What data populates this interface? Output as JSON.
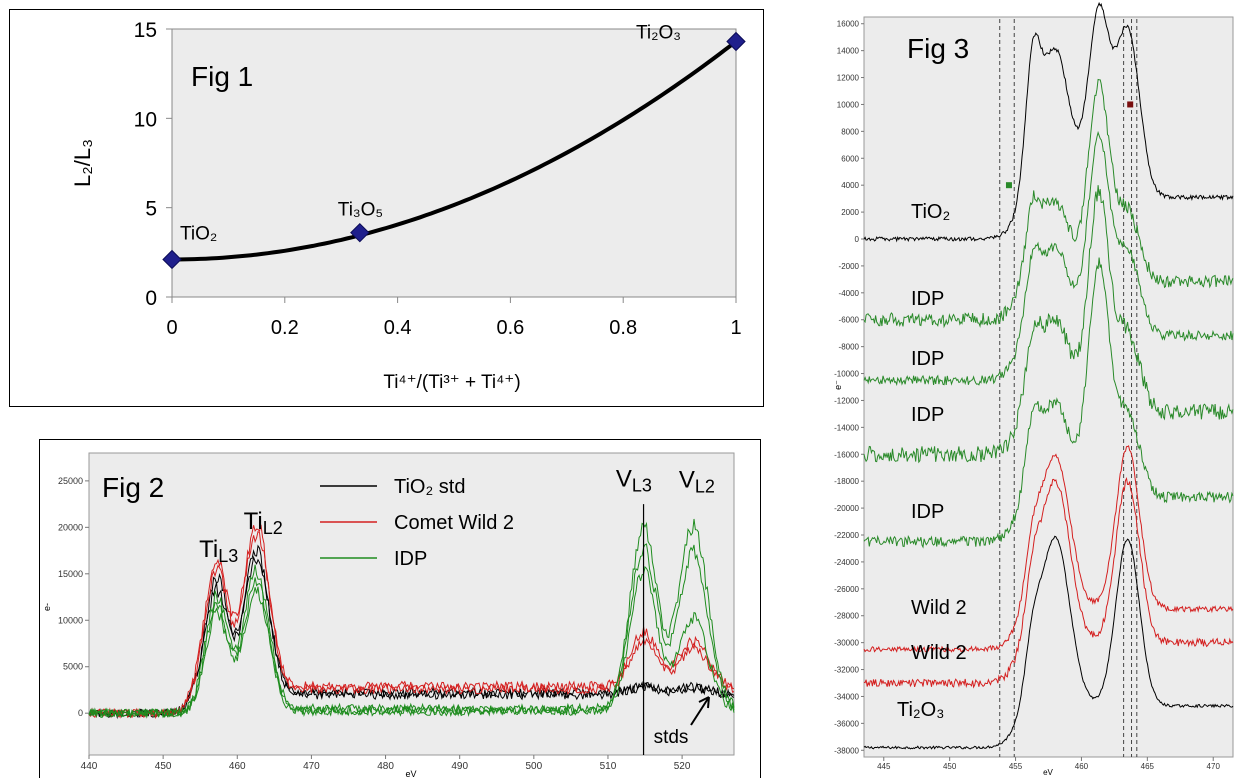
{
  "figures": {
    "fig1": {
      "label": "Fig 1"
    },
    "fig2": {
      "label": "Fig 2",
      "stds_label": "stds"
    },
    "fig3": {
      "label": "Fig 3"
    }
  },
  "colors": {
    "black": "#000000",
    "red": "#d42020",
    "green": "#1e8c1e",
    "marker": "#1f1f8c",
    "plot_bg": "#ececec"
  },
  "chart_data": [
    {
      "type": "line",
      "id": "fig1",
      "xlabel": "Ti⁴⁺/(Ti³⁺ + Ti⁴⁺)",
      "ylabel": "L₂/L₃",
      "xlim": [
        0,
        1
      ],
      "ylim": [
        0,
        15
      ],
      "x_ticks": [
        "0",
        "0.2",
        "0.4",
        "0.6",
        "0.8",
        "1"
      ],
      "y_ticks": [
        "0",
        "5",
        "10",
        "15"
      ],
      "points": [
        {
          "x": 0,
          "y": 2.1,
          "label": "TiO₂"
        },
        {
          "x": 0.333,
          "y": 3.6,
          "label": "Ti₃O₅"
        },
        {
          "x": 1,
          "y": 14.3,
          "label": "Ti₂O₃"
        }
      ],
      "fit": {
        "type": "quadratic",
        "a": 12.2,
        "b": 0,
        "c": 2.1
      },
      "grid": false
    },
    {
      "type": "line",
      "id": "fig2",
      "xlabel": "eV",
      "ylabel": "e-",
      "xlim": [
        440,
        527
      ],
      "ylim": [
        -4500,
        28000
      ],
      "x_ticks": [
        440,
        450,
        460,
        470,
        480,
        490,
        500,
        510,
        520
      ],
      "y_ticks": [
        0,
        5000,
        10000,
        15000,
        20000,
        25000
      ],
      "vline_x": 514.8,
      "legend": {
        "placement": "top",
        "entries": [
          {
            "name": "TiO₂ std",
            "color": "#000000"
          },
          {
            "name": "Comet Wild 2",
            "color": "#d42020"
          },
          {
            "name": "IDP",
            "color": "#1e8c1e"
          }
        ]
      },
      "annotations": [
        {
          "base": "Ti",
          "sub": "L3",
          "x": 457.5,
          "y": 16800
        },
        {
          "base": "Ti",
          "sub": "L2",
          "x": 463.5,
          "y": 19800
        },
        {
          "base": "V",
          "sub": "L3",
          "x": 513.5,
          "y": 24400
        },
        {
          "base": "V",
          "sub": "L2",
          "x": 522,
          "y": 24300
        }
      ],
      "series": [
        {
          "color": "#000000",
          "ti3": 11000,
          "ti2": 14500,
          "plateau": 2200,
          "v3": 600,
          "v2": 500
        },
        {
          "color": "#000000",
          "ti3": 12500,
          "ti2": 15500,
          "plateau": 2000,
          "v3": 900,
          "v2": 800
        },
        {
          "color": "#d42020",
          "ti3": 13500,
          "ti2": 17500,
          "plateau": 2900,
          "v3": 5800,
          "v2": 4700
        },
        {
          "color": "#d42020",
          "ti3": 12800,
          "ti2": 16800,
          "plateau": 2600,
          "v3": 5000,
          "v2": 4300
        },
        {
          "color": "#1e8c1e",
          "ti3": 12000,
          "ti2": 14800,
          "plateau": 500,
          "v3": 19500,
          "v2": 19500
        },
        {
          "color": "#1e8c1e",
          "ti3": 11200,
          "ti2": 13800,
          "plateau": 300,
          "v3": 17500,
          "v2": 17000
        },
        {
          "color": "#1e8c1e",
          "ti3": 10500,
          "ti2": 13000,
          "plateau": 200,
          "v3": 15000,
          "v2": 10000
        }
      ]
    },
    {
      "type": "line",
      "id": "fig3",
      "xlabel": "eV",
      "ylabel": "e⁻",
      "xlim": [
        443.5,
        471.5
      ],
      "ylim": [
        -38500,
        16500
      ],
      "x_ticks": [
        445,
        450,
        455,
        460,
        465,
        470
      ],
      "y_ticks": [
        16000,
        14000,
        12000,
        10000,
        8000,
        6000,
        4000,
        2000,
        0,
        -2000,
        -4000,
        -6000,
        -8000,
        -10000,
        -12000,
        -14000,
        -16000,
        -18000,
        -20000,
        -22000,
        -24000,
        -26000,
        -28000,
        -30000,
        -32000,
        -34000,
        -36000,
        -38000
      ],
      "dashed_lines_x": [
        453.8,
        454.9,
        463.2,
        463.8,
        464.2
      ],
      "markers": [
        {
          "x": 454.5,
          "y": 4000,
          "color": "#2a8a2a"
        },
        {
          "x": 463.7,
          "y": 10000,
          "color": "#7a0f0f"
        }
      ],
      "series": [
        {
          "name": "TiO₂",
          "color": "#000000",
          "base": 0,
          "amps": [
            8500,
            11000,
            13500,
            15500
          ],
          "noise": 150
        },
        {
          "name": "IDP",
          "color": "#2a8a2a",
          "base": -6000,
          "amps": [
            4500,
            6000,
            14500,
            8000
          ],
          "noise": 500
        },
        {
          "name": "IDP",
          "color": "#2a8a2a",
          "base": -10500,
          "amps": [
            4500,
            6500,
            14500,
            9500
          ],
          "noise": 350
        },
        {
          "name": "IDP",
          "color": "#2a8a2a",
          "base": -16000,
          "amps": [
            4500,
            7000,
            16000,
            9000
          ],
          "noise": 600
        },
        {
          "name": "IDP",
          "color": "#2a8a2a",
          "base": -22500,
          "amps": [
            4500,
            7000,
            17000,
            9500
          ],
          "noise": 400
        },
        {
          "name": "Wild 2",
          "color": "#d42020",
          "base": -30500,
          "amps": [
            3500,
            11500,
            0,
            15000
          ],
          "noise": 200
        },
        {
          "name": "Wild 2",
          "color": "#d42020",
          "base": -33000,
          "amps": [
            3500,
            12000,
            0,
            15000
          ],
          "noise": 300
        },
        {
          "name": "Ti₂O₃",
          "color": "#000000",
          "base": -37800,
          "amps": [
            3500,
            12500,
            0,
            15500
          ],
          "noise": 100
        }
      ]
    }
  ]
}
